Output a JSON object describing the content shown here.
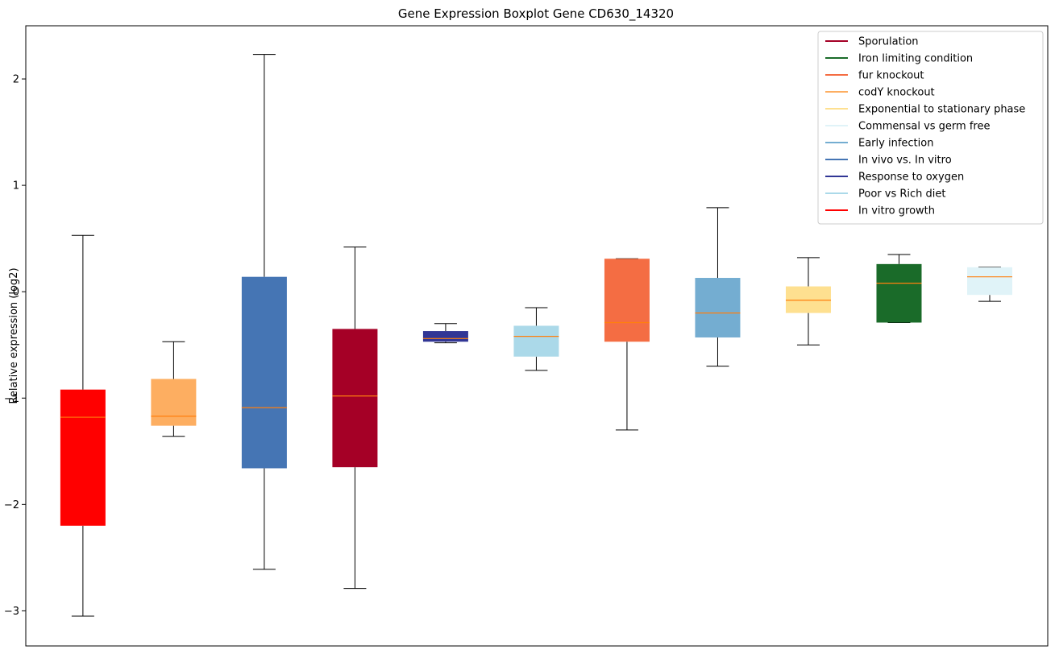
{
  "chart_data": {
    "type": "boxplot",
    "title": "Gene Expression Boxplot Gene CD630_14320",
    "xlabel": "",
    "ylabel": "Relative expression (log2)",
    "ylim": [
      -3.33,
      2.5
    ],
    "yticks": [
      -3,
      -2,
      -1,
      0,
      1,
      2
    ],
    "ytick_labels": [
      "−3",
      "−2",
      "−1",
      "0",
      "1",
      "2"
    ],
    "grid": false,
    "legend_position": "top-right",
    "median_color": "#ff7f0e",
    "series": [
      {
        "name": "In vitro growth",
        "color": "#ff0000",
        "whislo": -3.05,
        "q1": -2.2,
        "med": -1.18,
        "q3": -0.92,
        "whishi": 0.53
      },
      {
        "name": "codY knockout",
        "color": "#fdae61",
        "whislo": -1.36,
        "q1": -1.26,
        "med": -1.17,
        "q3": -0.82,
        "whishi": -0.47
      },
      {
        "name": "In vivo vs. In vitro",
        "color": "#4575b4",
        "whislo": -2.61,
        "q1": -1.66,
        "med": -1.09,
        "q3": 0.14,
        "whishi": 2.23
      },
      {
        "name": "Sporulation",
        "color": "#a50026",
        "whislo": -2.79,
        "q1": -1.65,
        "med": -0.98,
        "q3": -0.35,
        "whishi": 0.42
      },
      {
        "name": "Response to oxygen",
        "color": "#313695",
        "whislo": -0.48,
        "q1": -0.47,
        "med": -0.44,
        "q3": -0.37,
        "whishi": -0.3
      },
      {
        "name": "Poor vs Rich diet",
        "color": "#abd9e9",
        "whislo": -0.74,
        "q1": -0.61,
        "med": -0.42,
        "q3": -0.32,
        "whishi": -0.15
      },
      {
        "name": "fur knockout",
        "color": "#f46d43",
        "whislo": -1.3,
        "q1": -0.47,
        "med": -0.29,
        "q3": 0.31,
        "whishi": 0.31
      },
      {
        "name": "Early infection",
        "color": "#74add1",
        "whislo": -0.7,
        "q1": -0.43,
        "med": -0.2,
        "q3": 0.13,
        "whishi": 0.79
      },
      {
        "name": "Exponential to stationary phase",
        "color": "#fee090",
        "whislo": -0.5,
        "q1": -0.2,
        "med": -0.08,
        "q3": 0.05,
        "whishi": 0.32
      },
      {
        "name": "Iron limiting condition",
        "color": "#1a6b29",
        "whislo": -0.29,
        "q1": -0.29,
        "med": 0.08,
        "q3": 0.26,
        "whishi": 0.35
      },
      {
        "name": "Commensal vs germ free",
        "color": "#e0f3f8",
        "whislo": -0.09,
        "q1": -0.03,
        "med": 0.14,
        "q3": 0.23,
        "whishi": 0.23
      }
    ],
    "legend": [
      {
        "label": "Sporulation",
        "color": "#a50026"
      },
      {
        "label": "Iron limiting condition",
        "color": "#1a6b29"
      },
      {
        "label": "fur knockout",
        "color": "#f46d43"
      },
      {
        "label": "codY knockout",
        "color": "#fdae61"
      },
      {
        "label": "Exponential to stationary phase",
        "color": "#fee090"
      },
      {
        "label": "Commensal vs germ free",
        "color": "#e0f3f8"
      },
      {
        "label": "Early infection",
        "color": "#74add1"
      },
      {
        "label": "In vivo vs. In vitro",
        "color": "#4575b4"
      },
      {
        "label": "Response to oxygen",
        "color": "#313695"
      },
      {
        "label": "Poor vs Rich diet",
        "color": "#abd9e9"
      },
      {
        "label": "In vitro growth",
        "color": "#ff0000"
      }
    ]
  }
}
